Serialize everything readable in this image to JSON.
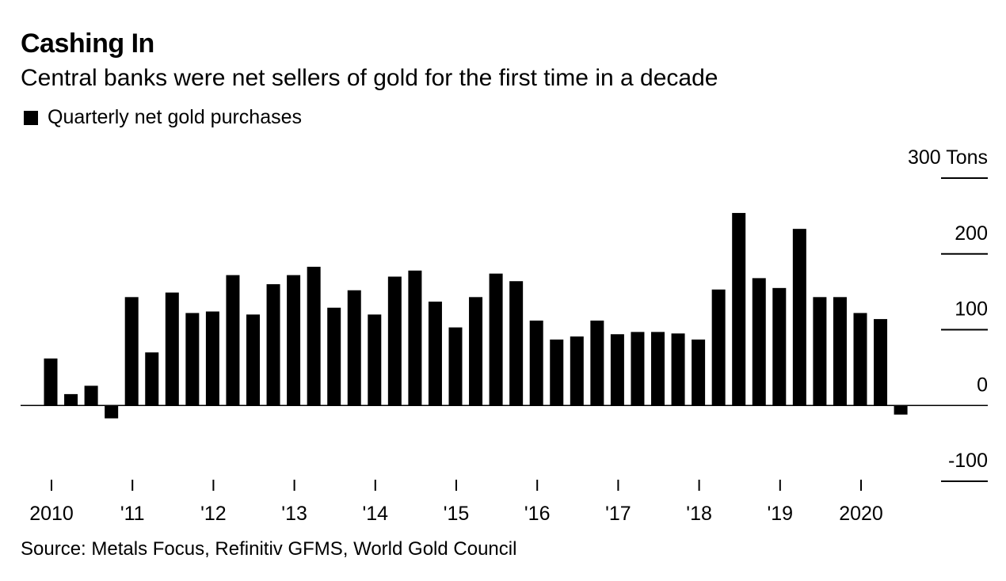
{
  "chart_data": {
    "type": "bar",
    "title": "Cashing In",
    "subtitle": "Central banks were net sellers of gold for the first time in a decade",
    "legend": [
      {
        "label": "Quarterly net gold purchases",
        "color": "#000000"
      }
    ],
    "ylabel_unit": "Tons",
    "ylim": [
      -100,
      300
    ],
    "y_ticks": [
      {
        "value": 300,
        "label": "300"
      },
      {
        "value": 200,
        "label": "200"
      },
      {
        "value": 100,
        "label": "100"
      },
      {
        "value": 0,
        "label": "0"
      },
      {
        "value": -100,
        "label": "-100"
      }
    ],
    "x_ticks": [
      "2010",
      "'11",
      "'12",
      "'13",
      "'14",
      "'15",
      "'16",
      "'17",
      "'18",
      "'19",
      "2020"
    ],
    "series": [
      {
        "name": "Quarterly net gold purchases",
        "color": "#000000",
        "values": [
          62,
          15,
          26,
          -17,
          143,
          70,
          149,
          122,
          124,
          172,
          120,
          160,
          172,
          183,
          129,
          152,
          120,
          170,
          178,
          137,
          103,
          143,
          174,
          164,
          112,
          87,
          91,
          112,
          94,
          97,
          97,
          95,
          87,
          153,
          254,
          168,
          155,
          233,
          143,
          143,
          122,
          114,
          -12
        ]
      }
    ]
  },
  "source": "Source: Metals Focus, Refinitiv GFMS, World Gold Council"
}
